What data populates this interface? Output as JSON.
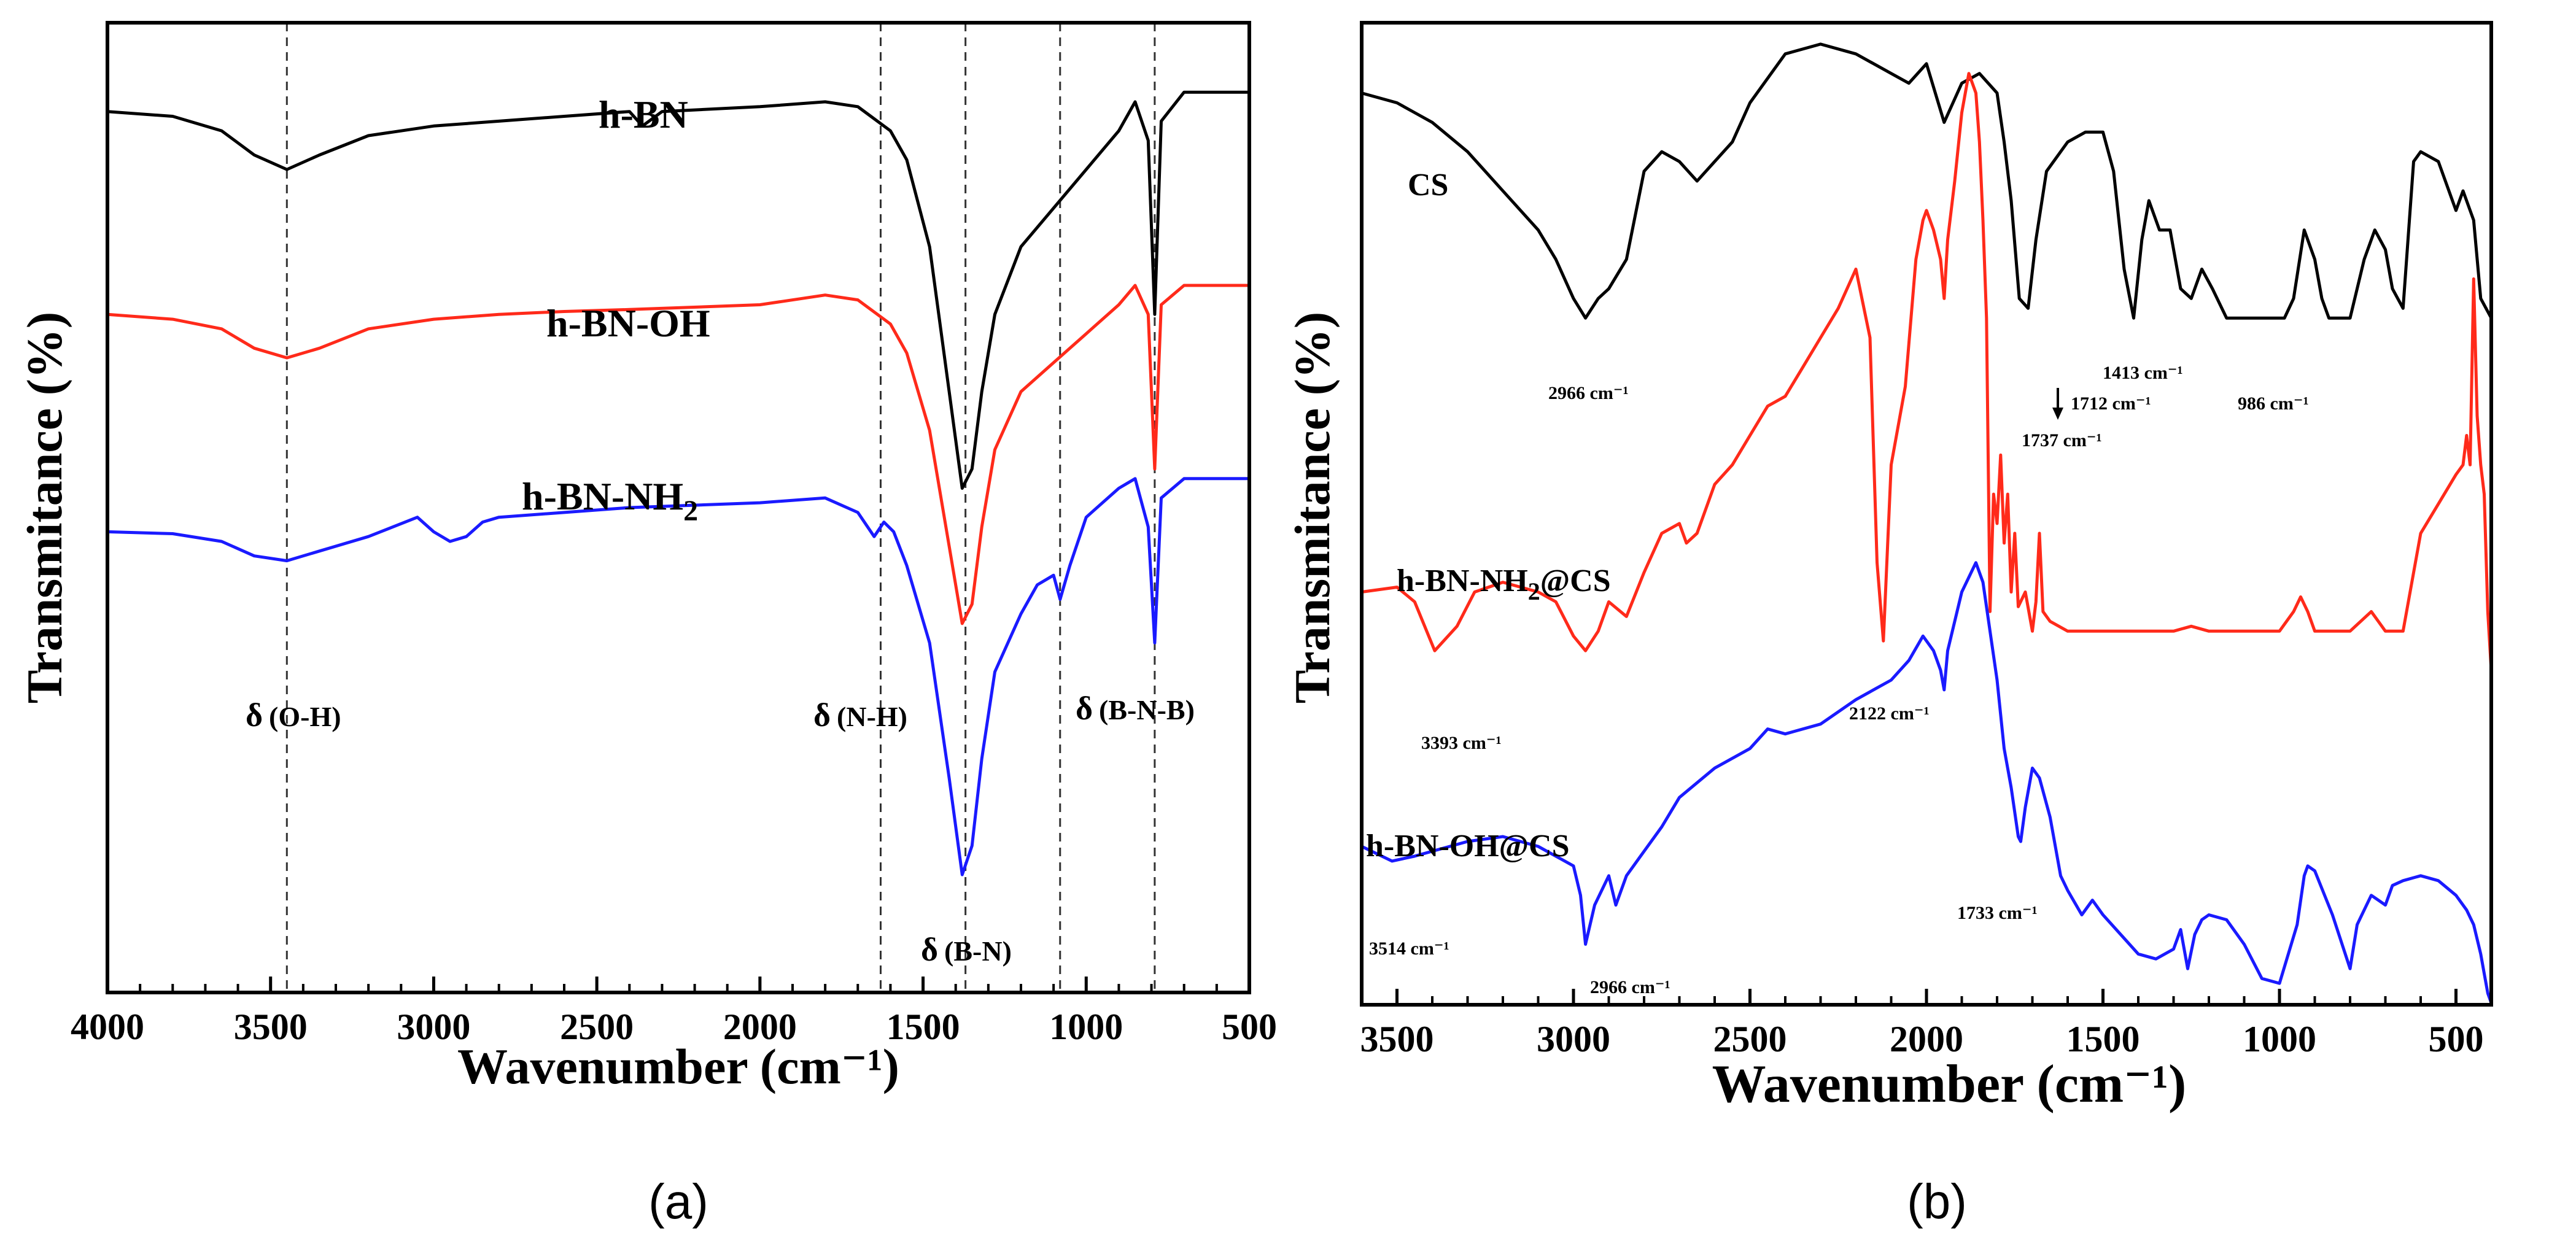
{
  "figure": {
    "panel_a_caption": "(a)",
    "panel_b_caption": "(b)"
  },
  "chart_data": [
    {
      "id": "a",
      "type": "line",
      "xlabel": "Wavenumber (cm⁻¹)",
      "ylabel": "Transmitance (%)",
      "xlim": [
        4000,
        500
      ],
      "ylim": [
        0,
        100
      ],
      "x_ticks": [
        4000,
        3500,
        3000,
        2500,
        2000,
        1500,
        1000,
        500
      ],
      "x_tick_labels": [
        "4000",
        "3500",
        "3000",
        "2500",
        "2000",
        "1500",
        "1000",
        "500"
      ],
      "y_ticks_shown": false,
      "series": [
        {
          "name": "h-BN",
          "color": "#000000",
          "x": [
            4000,
            3800,
            3650,
            3550,
            3450,
            3350,
            3200,
            3000,
            2800,
            2600,
            2400,
            2360,
            2300,
            2000,
            1800,
            1700,
            1600,
            1550,
            1480,
            1420,
            1380,
            1350,
            1320,
            1280,
            1200,
            1100,
            1000,
            900,
            850,
            810,
            790,
            770,
            700,
            600,
            500
          ],
          "y": [
            91,
            90.5,
            89,
            86.5,
            85,
            86.5,
            88.5,
            89.5,
            90,
            90.5,
            91,
            89.5,
            91,
            91.5,
            92,
            91.5,
            89,
            86,
            77,
            62,
            52,
            54,
            62,
            70,
            77,
            81,
            85,
            89,
            92,
            88,
            70,
            90,
            93,
            93,
            93
          ]
        },
        {
          "name": "h-BN-OH",
          "color": "#ff2a1a",
          "x": [
            4000,
            3800,
            3650,
            3550,
            3450,
            3350,
            3200,
            3000,
            2800,
            2600,
            2400,
            2000,
            1800,
            1700,
            1600,
            1550,
            1480,
            1420,
            1380,
            1350,
            1320,
            1280,
            1200,
            1100,
            1000,
            900,
            850,
            810,
            790,
            770,
            700,
            600,
            500
          ],
          "y": [
            70,
            69.5,
            68.5,
            66.5,
            65.5,
            66.5,
            68.5,
            69.5,
            70,
            70.3,
            70.5,
            71,
            72,
            71.5,
            69,
            66,
            58,
            46,
            38,
            40,
            48,
            56,
            62,
            65,
            68,
            71,
            73,
            70,
            54,
            71,
            73,
            73,
            73
          ]
        },
        {
          "name": "h-BN-NH2",
          "color": "#1a1aff",
          "x": [
            4000,
            3800,
            3650,
            3550,
            3450,
            3350,
            3200,
            3050,
            3000,
            2950,
            2900,
            2850,
            2800,
            2600,
            2400,
            2000,
            1800,
            1700,
            1650,
            1620,
            1590,
            1550,
            1480,
            1420,
            1380,
            1350,
            1320,
            1280,
            1200,
            1150,
            1100,
            1080,
            1050,
            1000,
            900,
            850,
            810,
            790,
            770,
            700,
            600,
            500
          ],
          "y": [
            47.5,
            47.3,
            46.5,
            45,
            44.5,
            45.5,
            47,
            49,
            47.5,
            46.5,
            47,
            48.5,
            49,
            49.5,
            50,
            50.5,
            51,
            49.5,
            47,
            48.5,
            47.5,
            44,
            36,
            22,
            12,
            15,
            24,
            33,
            39,
            42,
            43,
            40.5,
            44,
            49,
            52,
            53,
            48,
            36,
            51,
            53,
            53,
            53
          ]
        }
      ],
      "series_labels": [
        "h-BN",
        "h-BN-OH",
        "h-BN-NH",
        "2"
      ],
      "reference_lines": [
        3450,
        1630,
        1370,
        1080,
        790
      ],
      "annotations": [
        "δ",
        "(O-H)",
        "δ",
        "(N-H)",
        "δ",
        "(B-N)",
        "δ",
        "(B-N-B)"
      ]
    },
    {
      "id": "b",
      "type": "line",
      "xlabel": "Wavenumber (cm⁻¹)",
      "ylabel": "Transmitance (%)",
      "xlim": [
        3600,
        400
      ],
      "ylim": [
        0,
        100
      ],
      "x_ticks": [
        3500,
        3000,
        2500,
        2000,
        1500,
        1000,
        500
      ],
      "x_tick_labels": [
        "3500",
        "3000",
        "2500",
        "2000",
        "1500",
        "1000",
        "500"
      ],
      "y_ticks_shown": false,
      "series": [
        {
          "name": "CS",
          "color": "#000000",
          "x": [
            3600,
            3500,
            3450,
            3400,
            3300,
            3200,
            3100,
            3050,
            3000,
            2966,
            2930,
            2900,
            2850,
            2800,
            2750,
            2700,
            2650,
            2600,
            2550,
            2500,
            2400,
            2300,
            2200,
            2100,
            2050,
            2000,
            1950,
            1900,
            1850,
            1800,
            1780,
            1760,
            1737,
            1712,
            1690,
            1660,
            1600,
            1550,
            1500,
            1470,
            1440,
            1413,
            1390,
            1370,
            1340,
            1310,
            1280,
            1250,
            1220,
            1190,
            1150,
            1100,
            1050,
            1000,
            986,
            960,
            930,
            900,
            880,
            860,
            800,
            760,
            730,
            700,
            680,
            650,
            620,
            600,
            550,
            500,
            480,
            450,
            430,
            400
          ],
          "y": [
            93,
            92,
            91,
            90,
            87,
            83,
            79,
            76,
            72,
            70,
            72,
            73,
            76,
            85,
            87,
            86,
            84,
            86,
            88,
            92,
            97,
            98,
            97,
            95,
            94,
            96,
            90,
            94,
            95,
            93,
            88,
            82,
            72,
            71,
            78,
            85,
            88,
            89,
            89,
            85,
            75,
            70,
            78,
            82,
            79,
            79,
            73,
            72,
            75,
            73,
            70,
            70,
            70,
            70,
            70,
            72,
            79,
            76,
            72,
            70,
            70,
            76,
            79,
            77,
            73,
            71,
            86,
            87,
            86,
            81,
            83,
            80,
            72,
            70
          ]
        },
        {
          "name": "h-BN-NH2@CS",
          "color": "#ff2a1a",
          "x": [
            3600,
            3500,
            3450,
            3393,
            3330,
            3280,
            3200,
            3100,
            3050,
            3000,
            2966,
            2930,
            2900,
            2850,
            2800,
            2750,
            2700,
            2680,
            2650,
            2600,
            2550,
            2500,
            2450,
            2400,
            2350,
            2300,
            2250,
            2200,
            2160,
            2140,
            2122,
            2100,
            2060,
            2030,
            2010,
            2000,
            1980,
            1960,
            1950,
            1940,
            1920,
            1900,
            1880,
            1860,
            1850,
            1840,
            1830,
            1820,
            1810,
            1800,
            1790,
            1780,
            1770,
            1760,
            1750,
            1740,
            1720,
            1700,
            1690,
            1680,
            1670,
            1650,
            1600,
            1500,
            1400,
            1300,
            1250,
            1200,
            1100,
            1000,
            960,
            940,
            920,
            900,
            800,
            740,
            720,
            700,
            650,
            600,
            550,
            500,
            480,
            470,
            460,
            450,
            440,
            430,
            420,
            410,
            400
          ],
          "y": [
            42,
            42.5,
            41,
            36,
            38.5,
            42,
            43,
            42,
            41,
            37.5,
            36,
            38,
            41,
            39.5,
            44,
            48,
            49,
            47,
            48,
            53,
            55,
            58,
            61,
            62,
            65,
            68,
            71,
            75,
            68,
            45,
            37,
            55,
            63,
            76,
            80,
            81,
            79,
            76,
            72,
            78,
            84,
            91,
            95,
            93,
            88,
            80,
            70,
            40,
            52,
            49,
            56,
            47,
            52,
            42,
            48,
            40.5,
            42,
            38,
            41,
            48,
            40,
            39,
            38,
            38,
            38,
            38,
            38.5,
            38,
            38,
            38,
            40,
            41.5,
            40,
            38,
            38,
            40,
            39,
            38,
            38,
            48,
            51,
            54,
            55,
            58,
            55,
            74,
            60,
            55,
            52,
            40,
            34
          ]
        },
        {
          "name": "h-BN-OH@CS",
          "color": "#1a1aff",
          "x": [
            3600,
            3514,
            3450,
            3400,
            3300,
            3200,
            3100,
            3050,
            3000,
            2980,
            2966,
            2940,
            2900,
            2880,
            2850,
            2800,
            2750,
            2700,
            2600,
            2500,
            2450,
            2400,
            2300,
            2200,
            2100,
            2050,
            2010,
            2000,
            1980,
            1960,
            1950,
            1940,
            1900,
            1860,
            1840,
            1820,
            1800,
            1780,
            1760,
            1740,
            1733,
            1720,
            1700,
            1680,
            1650,
            1620,
            1600,
            1560,
            1530,
            1500,
            1450,
            1400,
            1350,
            1300,
            1280,
            1260,
            1240,
            1220,
            1200,
            1150,
            1100,
            1050,
            1000,
            950,
            930,
            920,
            900,
            850,
            800,
            780,
            760,
            740,
            720,
            700,
            680,
            650,
            600,
            550,
            500,
            470,
            450,
            430,
            420,
            410,
            400
          ],
          "y": [
            16,
            14.5,
            15,
            15.5,
            16.5,
            17,
            16,
            15,
            14,
            11,
            6,
            10,
            13,
            10,
            13,
            15.5,
            18,
            21,
            24,
            26,
            28,
            27.5,
            28.5,
            31,
            33,
            35,
            37.5,
            37,
            36,
            34,
            32,
            36,
            42,
            45,
            43,
            38,
            33,
            26,
            22,
            17,
            16.5,
            20,
            24,
            23,
            19,
            13,
            11.5,
            9,
            10.5,
            9,
            7,
            5,
            4.5,
            5.5,
            7.5,
            3.5,
            7,
            8.5,
            9,
            8.5,
            6,
            2.5,
            2,
            8,
            13,
            14,
            13.5,
            9,
            3.5,
            8,
            9.5,
            11,
            10.5,
            10,
            12,
            12.5,
            13,
            12.5,
            11,
            9.5,
            8,
            5,
            3,
            1,
            0
          ]
        }
      ],
      "series_labels": [
        "CS",
        "h-BN-NH",
        "2",
        "@CS",
        "h-BN-OH@CS"
      ],
      "annotations": [
        "2966 cm⁻¹",
        "1712 cm⁻¹",
        "1737 cm⁻¹",
        "1413 cm⁻¹",
        "986 cm⁻¹",
        "2122 cm⁻¹",
        "3393 cm⁻¹",
        "3514 cm⁻¹",
        "2966 cm⁻¹",
        "1733 cm⁻¹"
      ]
    }
  ]
}
